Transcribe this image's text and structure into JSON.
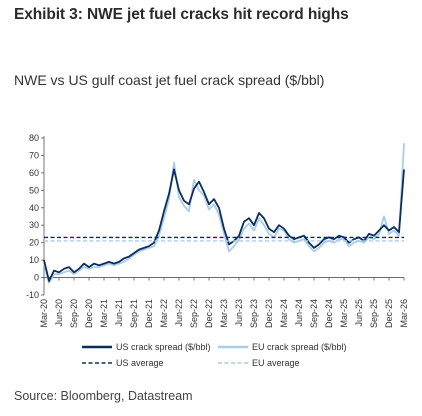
{
  "exhibit_title": "Exhibit 3: NWE jet fuel cracks hit record highs",
  "source": "Source: Bloomberg, Datastream",
  "chart_data": {
    "type": "line",
    "title": "NWE vs US gulf coast jet fuel crack spread ($/bbl)",
    "xlabel": "",
    "ylabel": "",
    "ylim": [
      -10,
      80
    ],
    "yticks": [
      -10,
      0,
      10,
      20,
      30,
      40,
      50,
      60,
      70,
      80
    ],
    "xlim": [
      "2020-03",
      "2026-03"
    ],
    "xtick_labels": [
      "Mar-20",
      "Jun-20",
      "Sep-20",
      "Dec-20",
      "Mar-21",
      "Jun-21",
      "Sep-21",
      "Dec-21",
      "Mar-22",
      "Jun-22",
      "Sep-22",
      "Dec-22",
      "Mar-23",
      "Jun-23",
      "Sep-23",
      "Dec-23",
      "Mar-24",
      "Jun-24",
      "Sep-24",
      "Dec-24",
      "Mar-25",
      "Jun-25",
      "Sep-25",
      "Dec-25",
      "Mar-26"
    ],
    "grid": false,
    "legend_position": "bottom",
    "series": [
      {
        "name": "US crack spread ($/bbl)",
        "style": "solid",
        "color": "#0b2d5b",
        "x": [
          "2020-03",
          "2020-04",
          "2020-05",
          "2020-06",
          "2020-07",
          "2020-08",
          "2020-09",
          "2020-10",
          "2020-11",
          "2020-12",
          "2021-01",
          "2021-02",
          "2021-03",
          "2021-04",
          "2021-05",
          "2021-06",
          "2021-07",
          "2021-08",
          "2021-09",
          "2021-10",
          "2021-11",
          "2021-12",
          "2022-01",
          "2022-02",
          "2022-03",
          "2022-04",
          "2022-05",
          "2022-06",
          "2022-07",
          "2022-08",
          "2022-09",
          "2022-10",
          "2022-11",
          "2022-12",
          "2023-01",
          "2023-02",
          "2023-03",
          "2023-04",
          "2023-05",
          "2023-06",
          "2023-07",
          "2023-08",
          "2023-09",
          "2023-10",
          "2023-11",
          "2023-12",
          "2024-01",
          "2024-02",
          "2024-03",
          "2024-04",
          "2024-05",
          "2024-06",
          "2024-07",
          "2024-08",
          "2024-09",
          "2024-10",
          "2024-11",
          "2024-12",
          "2025-01",
          "2025-02",
          "2025-03",
          "2025-04",
          "2025-05",
          "2025-06",
          "2025-07",
          "2025-08",
          "2025-09",
          "2025-10",
          "2025-11",
          "2025-12",
          "2026-01",
          "2026-02",
          "2026-03"
        ],
        "values": [
          10,
          -2,
          4,
          3,
          5,
          6,
          3,
          5,
          8,
          6,
          8,
          7,
          8,
          9,
          8,
          9,
          11,
          12,
          14,
          16,
          17,
          18,
          20,
          27,
          38,
          48,
          62,
          50,
          44,
          42,
          51,
          55,
          49,
          42,
          45,
          40,
          28,
          19,
          21,
          24,
          32,
          34,
          30,
          37,
          34,
          28,
          26,
          30,
          28,
          24,
          22,
          23,
          24,
          20,
          17,
          19,
          22,
          23,
          22,
          24,
          23,
          20,
          22,
          23,
          21,
          25,
          24,
          27,
          30,
          27,
          29,
          26,
          62
        ]
      },
      {
        "name": "EU crack spread ($/bbl)",
        "style": "solid",
        "color": "#a9cdea",
        "x": [
          "2020-03",
          "2020-04",
          "2020-05",
          "2020-06",
          "2020-07",
          "2020-08",
          "2020-09",
          "2020-10",
          "2020-11",
          "2020-12",
          "2021-01",
          "2021-02",
          "2021-03",
          "2021-04",
          "2021-05",
          "2021-06",
          "2021-07",
          "2021-08",
          "2021-09",
          "2021-10",
          "2021-11",
          "2021-12",
          "2022-01",
          "2022-02",
          "2022-03",
          "2022-04",
          "2022-05",
          "2022-06",
          "2022-07",
          "2022-08",
          "2022-09",
          "2022-10",
          "2022-11",
          "2022-12",
          "2023-01",
          "2023-02",
          "2023-03",
          "2023-04",
          "2023-05",
          "2023-06",
          "2023-07",
          "2023-08",
          "2023-09",
          "2023-10",
          "2023-11",
          "2023-12",
          "2024-01",
          "2024-02",
          "2024-03",
          "2024-04",
          "2024-05",
          "2024-06",
          "2024-07",
          "2024-08",
          "2024-09",
          "2024-10",
          "2024-11",
          "2024-12",
          "2025-01",
          "2025-02",
          "2025-03",
          "2025-04",
          "2025-05",
          "2025-06",
          "2025-07",
          "2025-08",
          "2025-09",
          "2025-10",
          "2025-11",
          "2025-12",
          "2026-01",
          "2026-02",
          "2026-03"
        ],
        "values": [
          8,
          -3,
          2,
          2,
          3,
          4,
          2,
          4,
          6,
          5,
          6,
          6,
          7,
          8,
          7,
          8,
          9,
          11,
          13,
          15,
          16,
          17,
          18,
          24,
          34,
          45,
          66,
          46,
          41,
          38,
          56,
          50,
          47,
          39,
          42,
          36,
          25,
          15,
          18,
          22,
          28,
          31,
          27,
          34,
          30,
          25,
          23,
          28,
          27,
          22,
          20,
          21,
          22,
          18,
          15,
          17,
          20,
          21,
          20,
          22,
          22,
          18,
          20,
          21,
          20,
          23,
          22,
          25,
          35,
          25,
          27,
          24,
          77
        ]
      },
      {
        "name": "US average",
        "style": "dashed",
        "color": "#0b2d5b",
        "x": [
          "2020-03",
          "2026-03"
        ],
        "values": [
          23,
          23
        ]
      },
      {
        "name": "EU average",
        "style": "dashed",
        "color": "#a9cdea",
        "x": [
          "2020-03",
          "2026-03"
        ],
        "values": [
          21,
          21
        ]
      }
    ]
  }
}
